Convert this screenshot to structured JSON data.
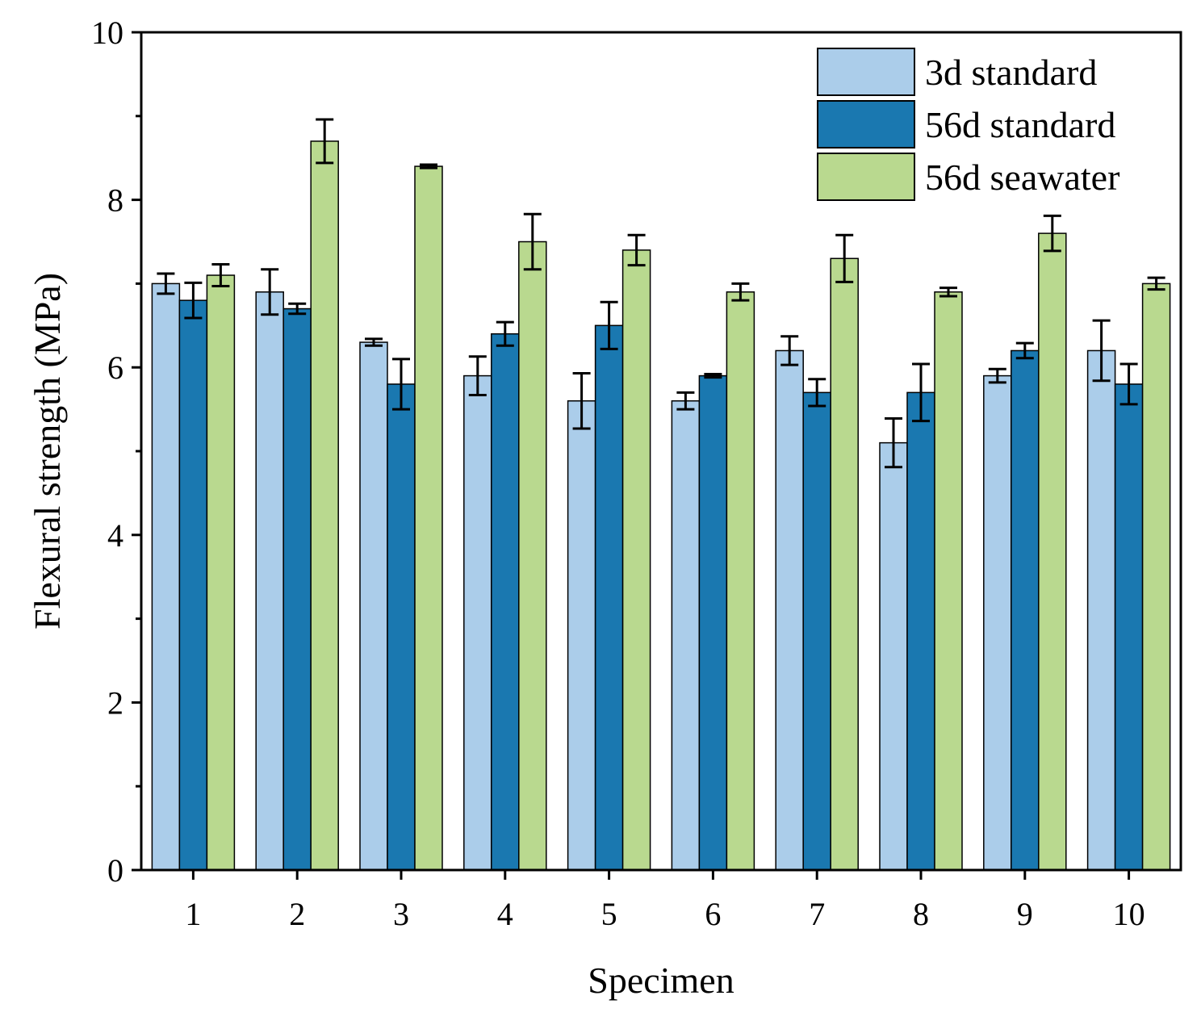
{
  "chart_data": {
    "type": "bar",
    "title": "",
    "xlabel": "Specimen",
    "ylabel": "Flexural strength (MPa)",
    "ylim": [
      0,
      10
    ],
    "yticks": [
      "0",
      "2",
      "4",
      "6",
      "8",
      "10"
    ],
    "categories": [
      "1",
      "2",
      "3",
      "4",
      "5",
      "6",
      "7",
      "8",
      "9",
      "10"
    ],
    "legend_position": "top-right",
    "series": [
      {
        "name": "3d standard",
        "color": "#abcdea",
        "values": [
          7.0,
          6.9,
          6.3,
          5.9,
          5.6,
          5.6,
          6.2,
          5.1,
          5.9,
          6.2
        ],
        "errors": [
          0.12,
          0.27,
          0.04,
          0.23,
          0.33,
          0.1,
          0.17,
          0.29,
          0.08,
          0.36
        ]
      },
      {
        "name": "56d standard",
        "color": "#1a78b0",
        "values": [
          6.8,
          6.7,
          5.8,
          6.4,
          6.5,
          5.9,
          5.7,
          5.7,
          6.2,
          5.8
        ],
        "errors": [
          0.21,
          0.06,
          0.3,
          0.14,
          0.28,
          0.02,
          0.16,
          0.34,
          0.09,
          0.24
        ]
      },
      {
        "name": "56d seawater",
        "color": "#b9d98f",
        "values": [
          7.1,
          8.7,
          8.4,
          7.5,
          7.4,
          6.9,
          7.3,
          6.9,
          7.6,
          7.0
        ],
        "errors": [
          0.13,
          0.26,
          0.02,
          0.33,
          0.18,
          0.1,
          0.28,
          0.05,
          0.21,
          0.07
        ]
      }
    ]
  }
}
